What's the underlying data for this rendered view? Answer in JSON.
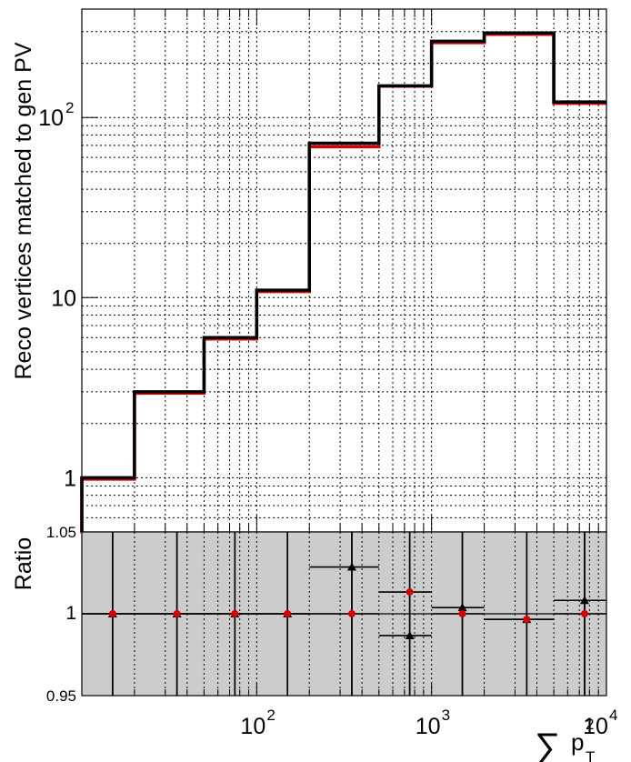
{
  "chart_data": [
    {
      "type": "line",
      "ylabel": "Reco vertices matched to gen PV",
      "x_scale": "log",
      "y_scale": "log",
      "xlim": [
        10,
        10000
      ],
      "ylim": [
        0.5,
        400
      ],
      "grid": true,
      "x_tick_labels": [
        {
          "value": 100,
          "base": "10",
          "exp": "2"
        },
        {
          "value": 1000,
          "base": "10",
          "exp": "3"
        },
        {
          "value": 10000,
          "base": "10",
          "exp": "4"
        }
      ],
      "y_tick_labels": [
        {
          "value": 1,
          "label": "1"
        },
        {
          "value": 10,
          "label": "10"
        },
        {
          "value": 100,
          "base": "10",
          "exp": "2"
        }
      ],
      "bin_edges": [
        10,
        20,
        50,
        100,
        200,
        500,
        1000,
        2000,
        5000,
        10000
      ],
      "series": [
        {
          "color": "#d40000",
          "values": [
            1,
            3,
            6,
            11,
            70,
            152,
            265,
            295,
            122
          ]
        },
        {
          "color": "#000000",
          "values": [
            1,
            3,
            6,
            11,
            72,
            150,
            265,
            295,
            122
          ]
        }
      ]
    },
    {
      "type": "scatter",
      "ylabel": "Ratio",
      "x_scale": "log",
      "xlim": [
        10,
        10000
      ],
      "ylim": [
        0.95,
        1.05
      ],
      "y_tick_labels": [
        {
          "value": 0.95,
          "label": "0.95"
        },
        {
          "value": 1,
          "label": "1"
        },
        {
          "value": 1.05,
          "label": "1.05"
        }
      ],
      "x_axis_title": {
        "symbol": "∑",
        "base": "p",
        "sup": "2",
        "sub": "T"
      },
      "bin_edges": [
        10,
        20,
        50,
        100,
        200,
        500,
        1000,
        2000,
        5000,
        10000
      ],
      "x_centers": [
        15,
        35,
        75,
        150,
        350,
        750,
        1500,
        3500,
        7500
      ],
      "series": [
        {
          "marker": "triangle",
          "color": "#000000",
          "values": [
            1.0,
            1.0,
            1.0,
            1.0,
            1.0286,
            0.9867,
            1.0038,
            0.9966,
            1.0082
          ]
        },
        {
          "marker": "circle",
          "color": "#d40000",
          "values": [
            1.0,
            1.0,
            1.0,
            1.0,
            1.0,
            1.0133,
            1.0,
            0.9966,
            1.0
          ]
        }
      ],
      "error_bars": "full-range",
      "background_color": "#cccccc"
    }
  ]
}
